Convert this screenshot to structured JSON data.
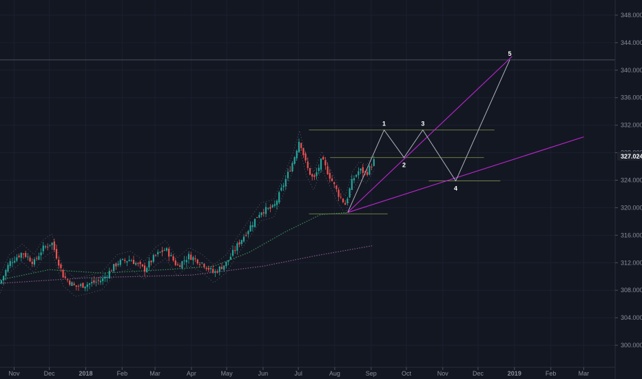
{
  "chart_data": {
    "type": "candlestick",
    "ylim": [
      297,
      350
    ],
    "y_ticks": [
      "300.000",
      "304.000",
      "308.000",
      "312.000",
      "316.000",
      "320.000",
      "324.000",
      "328.000",
      "332.000",
      "336.000",
      "340.000",
      "344.000",
      "348.000"
    ],
    "x_ticks": [
      "Nov",
      "Dec",
      "2018",
      "Feb",
      "Mar",
      "Apr",
      "May",
      "Jun",
      "Jul",
      "Aug",
      "Sep",
      "Oct",
      "Nov",
      "Dec",
      "2019",
      "Feb",
      "Mar"
    ],
    "current_price": "327.024",
    "colors": {
      "up": "#26a69a",
      "down": "#ef5350",
      "projection": "#b2b5be",
      "trend": "#c026d3",
      "level": "#6b7a3c"
    },
    "candle_close_path": [
      {
        "d": "2017-10-20",
        "v": 309
      },
      {
        "d": "2017-10-28",
        "v": 312
      },
      {
        "d": "2017-11-08",
        "v": 313.5
      },
      {
        "d": "2017-11-18",
        "v": 312
      },
      {
        "d": "2017-11-25",
        "v": 314
      },
      {
        "d": "2017-12-03",
        "v": 315
      },
      {
        "d": "2017-12-13",
        "v": 310
      },
      {
        "d": "2017-12-23",
        "v": 308.5
      },
      {
        "d": "2018-01-05",
        "v": 309
      },
      {
        "d": "2018-01-15",
        "v": 309.5
      },
      {
        "d": "2018-01-28",
        "v": 312
      },
      {
        "d": "2018-02-08",
        "v": 312.5
      },
      {
        "d": "2018-02-20",
        "v": 311
      },
      {
        "d": "2018-03-01",
        "v": 313
      },
      {
        "d": "2018-03-10",
        "v": 314
      },
      {
        "d": "2018-03-20",
        "v": 311.5
      },
      {
        "d": "2018-03-30",
        "v": 313
      },
      {
        "d": "2018-04-10",
        "v": 312
      },
      {
        "d": "2018-04-20",
        "v": 310.5
      },
      {
        "d": "2018-05-01",
        "v": 312
      },
      {
        "d": "2018-05-10",
        "v": 314.5
      },
      {
        "d": "2018-05-20",
        "v": 317
      },
      {
        "d": "2018-05-30",
        "v": 319.5
      },
      {
        "d": "2018-06-10",
        "v": 320
      },
      {
        "d": "2018-06-20",
        "v": 324
      },
      {
        "d": "2018-06-27",
        "v": 327
      },
      {
        "d": "2018-07-02",
        "v": 330
      },
      {
        "d": "2018-07-08",
        "v": 326
      },
      {
        "d": "2018-07-14",
        "v": 324
      },
      {
        "d": "2018-07-21",
        "v": 327
      },
      {
        "d": "2018-07-28",
        "v": 324.5
      },
      {
        "d": "2018-08-04",
        "v": 322
      },
      {
        "d": "2018-08-10",
        "v": 320.5
      },
      {
        "d": "2018-08-16",
        "v": 324
      },
      {
        "d": "2018-08-22",
        "v": 325.5
      },
      {
        "d": "2018-08-28",
        "v": 325
      },
      {
        "d": "2018-09-04",
        "v": 327
      }
    ],
    "ma_fast": [
      {
        "d": "2017-10-20",
        "v": 309.5
      },
      {
        "d": "2017-12-01",
        "v": 311
      },
      {
        "d": "2018-01-15",
        "v": 310.5
      },
      {
        "d": "2018-03-10",
        "v": 311
      },
      {
        "d": "2018-04-20",
        "v": 311.5
      },
      {
        "d": "2018-05-20",
        "v": 313.5
      },
      {
        "d": "2018-06-20",
        "v": 316.5
      },
      {
        "d": "2018-07-20",
        "v": 319
      },
      {
        "d": "2018-08-12",
        "v": 319.3
      }
    ],
    "ma_slow": [
      {
        "d": "2017-10-20",
        "v": 309
      },
      {
        "d": "2018-01-01",
        "v": 309.8
      },
      {
        "d": "2018-04-01",
        "v": 310.2
      },
      {
        "d": "2018-06-01",
        "v": 311.5
      },
      {
        "d": "2018-07-15",
        "v": 313
      },
      {
        "d": "2018-09-03",
        "v": 314.5
      }
    ],
    "wave_points": [
      {
        "label": "",
        "d": "2018-08-12",
        "v": 319.3
      },
      {
        "label": "1",
        "d": "2018-09-12",
        "v": 331.3
      },
      {
        "label": "2",
        "d": "2018-09-29",
        "v": 327.3
      },
      {
        "label": "3",
        "d": "2018-10-15",
        "v": 331.3
      },
      {
        "label": "4",
        "d": "2018-11-12",
        "v": 323.9
      },
      {
        "label": "5",
        "d": "2018-12-28",
        "v": 341.5
      }
    ],
    "trendlines": [
      {
        "from": {
          "d": "2018-08-12",
          "v": 319.3
        },
        "to": {
          "d": "2018-12-30",
          "v": 342
        }
      },
      {
        "from": {
          "d": "2018-08-12",
          "v": 319.3
        },
        "to": {
          "d": "2019-03-01",
          "v": 330.3
        }
      }
    ],
    "levels": [
      {
        "v": 331.3,
        "from": "2018-07-10",
        "to": "2018-12-15"
      },
      {
        "v": 327.3,
        "from": "2018-07-28",
        "to": "2018-12-06"
      },
      {
        "v": 323.9,
        "from": "2018-10-20",
        "to": "2018-12-20"
      },
      {
        "v": 319.1,
        "from": "2018-07-10",
        "to": "2018-09-15"
      }
    ],
    "top_level": 341.5
  }
}
